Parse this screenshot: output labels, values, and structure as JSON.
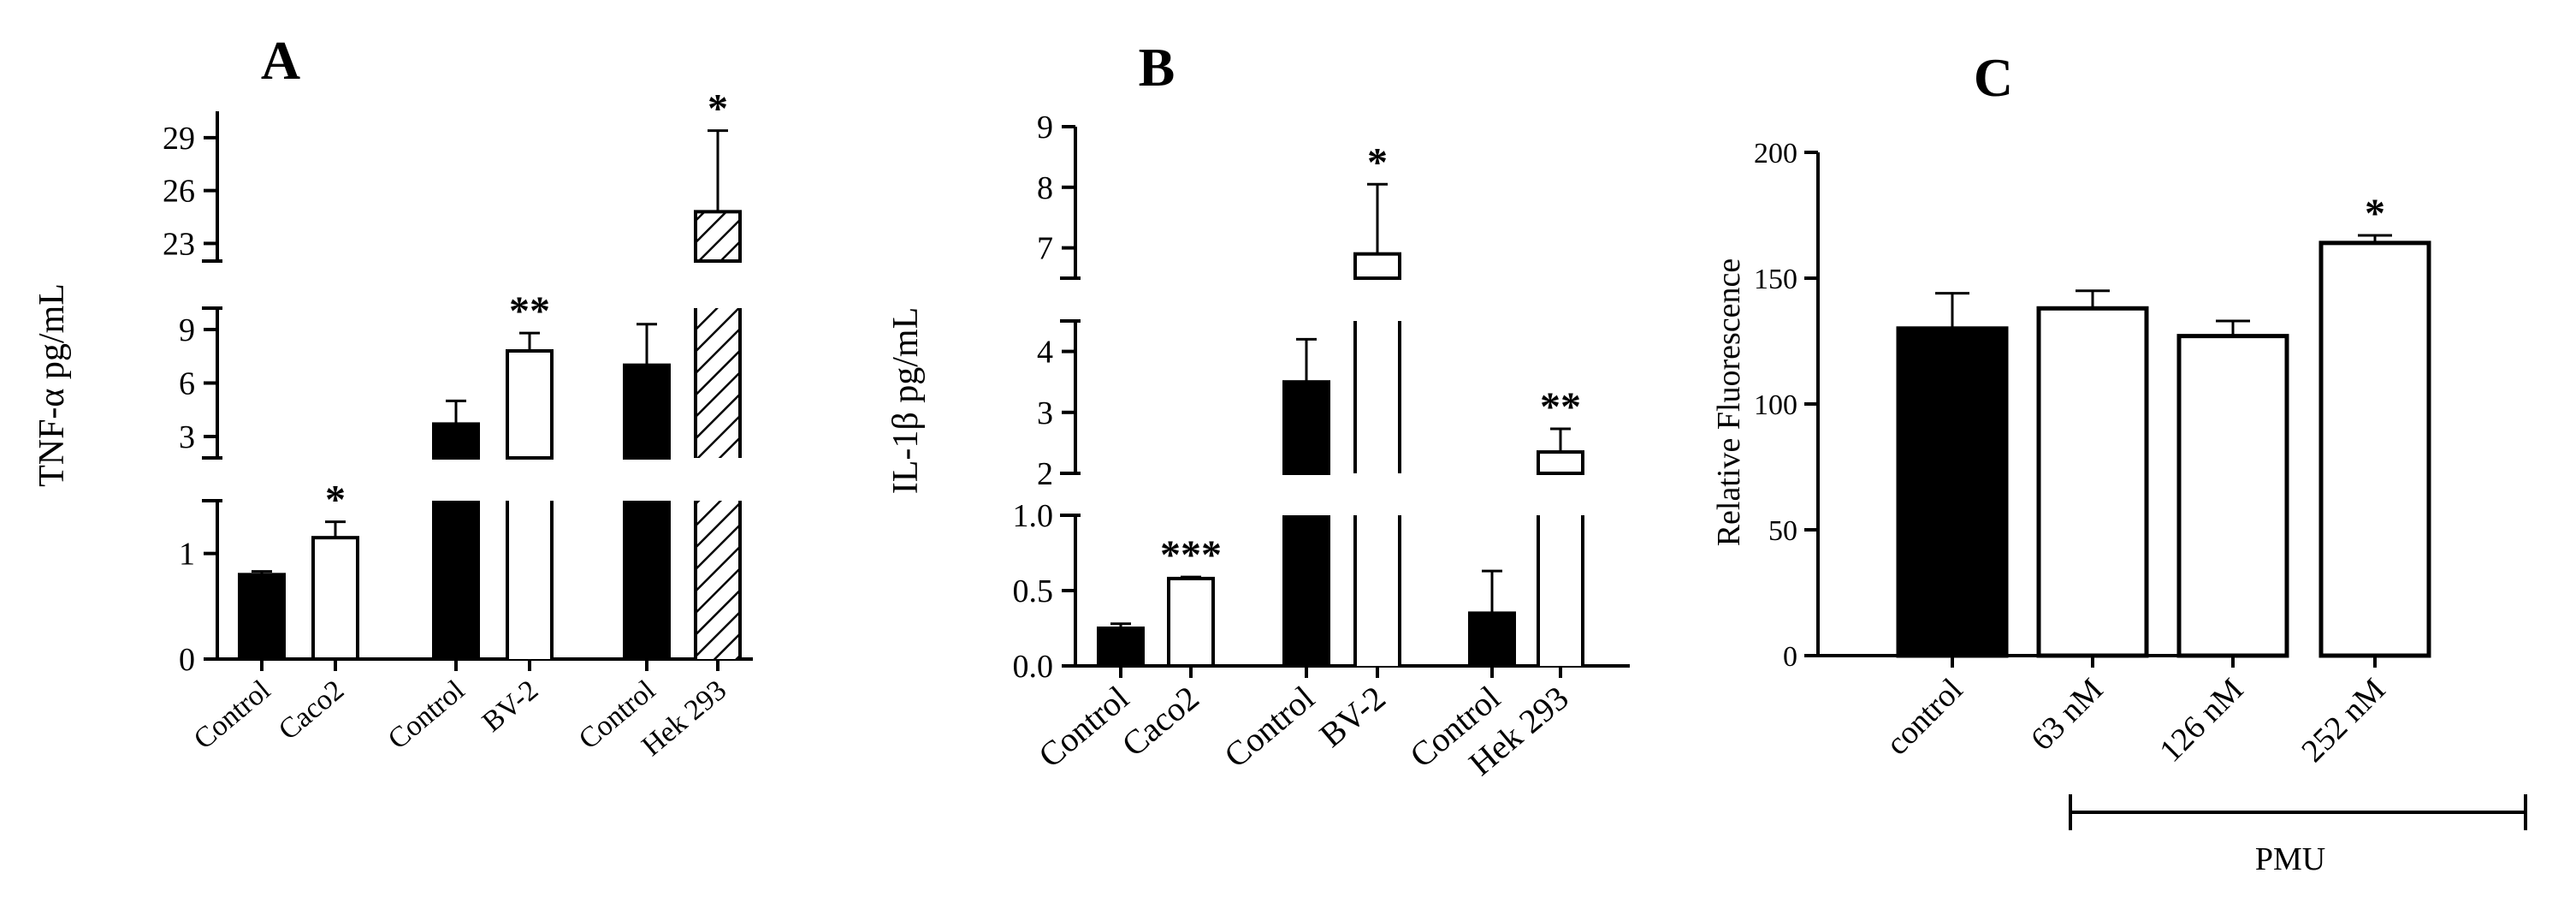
{
  "chart_data": [
    {
      "panel": "A",
      "type": "bar",
      "ylabel": "TNF-α pg/mL",
      "axis_segments": [
        {
          "range": [
            0,
            1.5
          ],
          "ticks": [
            0,
            1
          ]
        },
        {
          "range": [
            1.8,
            10.2
          ],
          "ticks": [
            3,
            6,
            9
          ]
        },
        {
          "range": [
            22,
            30.5
          ],
          "ticks": [
            23,
            26,
            29
          ]
        }
      ],
      "groups": [
        {
          "bars": [
            {
              "label": "Control",
              "value": 0.8,
              "error": 0.03,
              "fill": "solid",
              "sig": ""
            },
            {
              "label": "Caco2",
              "value": 1.15,
              "error": 0.15,
              "fill": "open",
              "sig": "*"
            }
          ]
        },
        {
          "bars": [
            {
              "label": "Control",
              "value": 3.7,
              "error": 1.3,
              "fill": "solid",
              "sig": ""
            },
            {
              "label": "BV-2",
              "value": 7.8,
              "error": 1.0,
              "fill": "open",
              "sig": "**"
            }
          ]
        },
        {
          "bars": [
            {
              "label": "Control",
              "value": 7.0,
              "error": 2.3,
              "fill": "solid",
              "sig": ""
            },
            {
              "label": "Hek 293",
              "value": 24.8,
              "error": 4.6,
              "fill": "hatched",
              "sig": "*"
            }
          ]
        }
      ]
    },
    {
      "panel": "B",
      "type": "bar",
      "ylabel": "IL-1β pg/mL",
      "axis_segments": [
        {
          "range": [
            0,
            1.0
          ],
          "ticks": [
            0.0,
            0.5,
            1.0
          ]
        },
        {
          "range": [
            2,
            4.5
          ],
          "ticks": [
            2,
            3,
            4
          ]
        },
        {
          "range": [
            6.5,
            9
          ],
          "ticks": [
            7,
            8,
            9
          ]
        }
      ],
      "groups": [
        {
          "bars": [
            {
              "label": "Control",
              "value": 0.25,
              "error": 0.03,
              "fill": "solid",
              "sig": ""
            },
            {
              "label": "Caco2",
              "value": 0.58,
              "error": 0.01,
              "fill": "open",
              "sig": "***"
            }
          ]
        },
        {
          "bars": [
            {
              "label": "Control",
              "value": 3.5,
              "error": 0.7,
              "fill": "solid",
              "sig": ""
            },
            {
              "label": "BV-2",
              "value": 6.9,
              "error": 1.15,
              "fill": "open",
              "sig": "*"
            }
          ]
        },
        {
          "bars": [
            {
              "label": "Control",
              "value": 0.35,
              "error": 0.28,
              "fill": "solid",
              "sig": ""
            },
            {
              "label": "Hek 293",
              "value": 2.35,
              "error": 0.38,
              "fill": "open",
              "sig": "**"
            }
          ]
        }
      ]
    },
    {
      "panel": "C",
      "type": "bar",
      "ylabel": "Relative Fluorescence",
      "ylim": [
        0,
        200
      ],
      "yticks": [
        0,
        50,
        100,
        150,
        200
      ],
      "bars": [
        {
          "label": "control",
          "value": 130,
          "error": 14,
          "fill": "solid",
          "sig": ""
        },
        {
          "label": "63 nM",
          "value": 138,
          "error": 7,
          "fill": "open",
          "sig": ""
        },
        {
          "label": "126 nM",
          "value": 127,
          "error": 6,
          "fill": "open",
          "sig": ""
        },
        {
          "label": "252 nM",
          "value": 164,
          "error": 3,
          "fill": "open",
          "sig": "*"
        }
      ],
      "bracket_label": "PMU"
    }
  ]
}
